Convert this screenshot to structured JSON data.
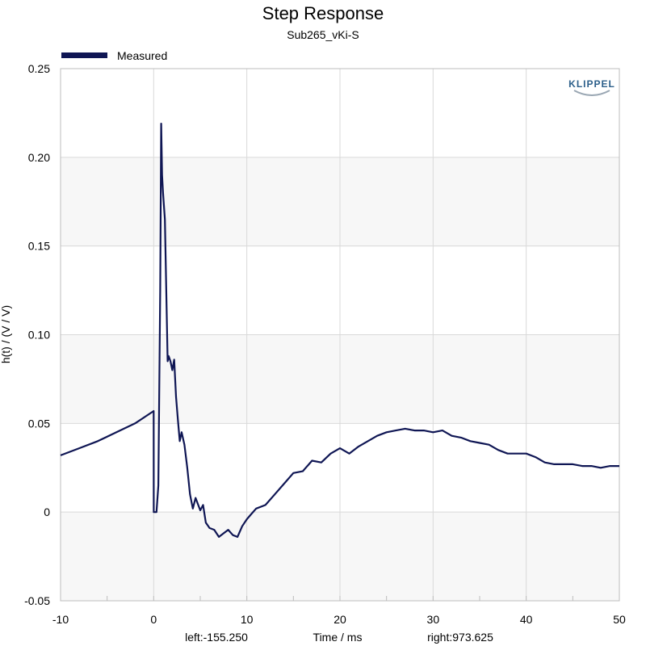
{
  "chart_data": {
    "type": "line",
    "title": "Step Response",
    "subtitle": "Sub265_vKi-S",
    "xlabel": "Time / ms",
    "ylabel": "h(t) / (V / V)",
    "xlim": [
      -10,
      50
    ],
    "ylim": [
      -0.05,
      0.25
    ],
    "x_ticks": [
      -10,
      0,
      10,
      20,
      30,
      40,
      50
    ],
    "x_tick_labels": [
      "-10",
      "0",
      "10",
      "20",
      "30",
      "40",
      "50"
    ],
    "y_ticks": [
      -0.05,
      0,
      0.05,
      0.1,
      0.15,
      0.2,
      0.25
    ],
    "y_tick_labels": [
      "-0.05",
      "0",
      "0.05",
      "0.10",
      "0.15",
      "0.20",
      "0.25"
    ],
    "grid": true,
    "legend_position": "top-left",
    "series": [
      {
        "name": "Measured",
        "color": "#0f1654",
        "x": [
          -10,
          -8,
          -6,
          -4,
          -2,
          0,
          0.01,
          0.3,
          0.5,
          0.7,
          0.8,
          0.9,
          1.0,
          1.2,
          1.5,
          1.6,
          1.8,
          2.0,
          2.2,
          2.4,
          2.6,
          2.8,
          3.0,
          3.3,
          3.6,
          3.9,
          4.2,
          4.5,
          5.0,
          5.3,
          5.6,
          6.0,
          6.5,
          7.0,
          7.5,
          8.0,
          8.5,
          9.0,
          9.5,
          10.0,
          10.5,
          11.0,
          12.0,
          13.0,
          14.0,
          15.0,
          16.0,
          17.0,
          18.0,
          19.0,
          20.0,
          21.0,
          22.0,
          23.0,
          24.0,
          25.0,
          26.0,
          27.0,
          28.0,
          29.0,
          30.0,
          31.0,
          32.0,
          33.0,
          34.0,
          35.0,
          36.0,
          37.0,
          38.0,
          39.0,
          40.0,
          41.0,
          42.0,
          43.0,
          44.0,
          45.0,
          46.0,
          47.0,
          48.0,
          49.0,
          50.0
        ],
        "y": [
          0.032,
          0.036,
          0.04,
          0.045,
          0.05,
          0.057,
          0.0,
          0.0,
          0.015,
          0.125,
          0.219,
          0.19,
          0.18,
          0.165,
          0.085,
          0.088,
          0.085,
          0.08,
          0.086,
          0.065,
          0.052,
          0.04,
          0.045,
          0.038,
          0.025,
          0.01,
          0.002,
          0.008,
          0.001,
          0.004,
          -0.006,
          -0.009,
          -0.01,
          -0.014,
          -0.012,
          -0.01,
          -0.013,
          -0.014,
          -0.008,
          -0.004,
          -0.001,
          0.002,
          0.004,
          0.01,
          0.016,
          0.022,
          0.023,
          0.029,
          0.028,
          0.033,
          0.036,
          0.033,
          0.037,
          0.04,
          0.043,
          0.045,
          0.046,
          0.047,
          0.046,
          0.046,
          0.045,
          0.046,
          0.043,
          0.042,
          0.04,
          0.039,
          0.038,
          0.035,
          0.033,
          0.033,
          0.033,
          0.031,
          0.028,
          0.027,
          0.027,
          0.027,
          0.026,
          0.026,
          0.025,
          0.026,
          0.026
        ]
      }
    ]
  },
  "legend": {
    "entries": [
      "Measured"
    ]
  },
  "footer": {
    "left": "left:-155.250",
    "center": "Time / ms",
    "right": "right:973.625"
  },
  "logo": {
    "text": "KLIPPEL"
  },
  "colors": {
    "line": "#0f1654",
    "band": "#f7f7f7",
    "grid": "#d9d9d9",
    "logo": "#2c5f8a"
  }
}
